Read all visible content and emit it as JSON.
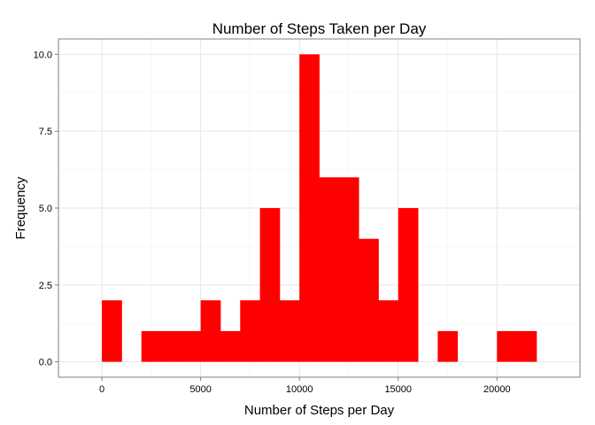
{
  "chart_data": {
    "type": "bar",
    "title": "Number of Steps Taken per Day",
    "xlabel": "Number of Steps per Day",
    "ylabel": "Frequency",
    "bin_width": 1000,
    "bins": [
      {
        "start": 0,
        "end": 1000,
        "count": 2
      },
      {
        "start": 1000,
        "end": 2000,
        "count": 0
      },
      {
        "start": 2000,
        "end": 3000,
        "count": 1
      },
      {
        "start": 3000,
        "end": 4000,
        "count": 1
      },
      {
        "start": 4000,
        "end": 5000,
        "count": 1
      },
      {
        "start": 5000,
        "end": 6000,
        "count": 2
      },
      {
        "start": 6000,
        "end": 7000,
        "count": 1
      },
      {
        "start": 7000,
        "end": 8000,
        "count": 2
      },
      {
        "start": 8000,
        "end": 9000,
        "count": 5
      },
      {
        "start": 9000,
        "end": 10000,
        "count": 2
      },
      {
        "start": 10000,
        "end": 11000,
        "count": 10
      },
      {
        "start": 11000,
        "end": 12000,
        "count": 6
      },
      {
        "start": 12000,
        "end": 13000,
        "count": 6
      },
      {
        "start": 13000,
        "end": 14000,
        "count": 4
      },
      {
        "start": 14000,
        "end": 15000,
        "count": 2
      },
      {
        "start": 15000,
        "end": 16000,
        "count": 5
      },
      {
        "start": 16000,
        "end": 17000,
        "count": 0
      },
      {
        "start": 17000,
        "end": 18000,
        "count": 1
      },
      {
        "start": 18000,
        "end": 19000,
        "count": 0
      },
      {
        "start": 19000,
        "end": 20000,
        "count": 0
      },
      {
        "start": 20000,
        "end": 21000,
        "count": 1
      },
      {
        "start": 21000,
        "end": 22000,
        "count": 1
      }
    ],
    "xlim": [
      -2200,
      24200
    ],
    "ylim": [
      -0.5,
      10.5
    ],
    "x_ticks": [
      0,
      5000,
      10000,
      15000,
      20000
    ],
    "x_tick_labels": [
      "0",
      "5000",
      "10000",
      "15000",
      "20000"
    ],
    "y_ticks": [
      0,
      2.5,
      5,
      7.5,
      10
    ],
    "y_tick_labels": [
      "0.0",
      "2.5",
      "5.0",
      "7.5",
      "10.0"
    ],
    "grid": true,
    "legend": "none",
    "colors": {
      "bar": "#ff0000",
      "grid_major": "#e6e6e6",
      "grid_minor": "#f3f3f3",
      "border": "#808080",
      "tick": "#808080"
    }
  }
}
